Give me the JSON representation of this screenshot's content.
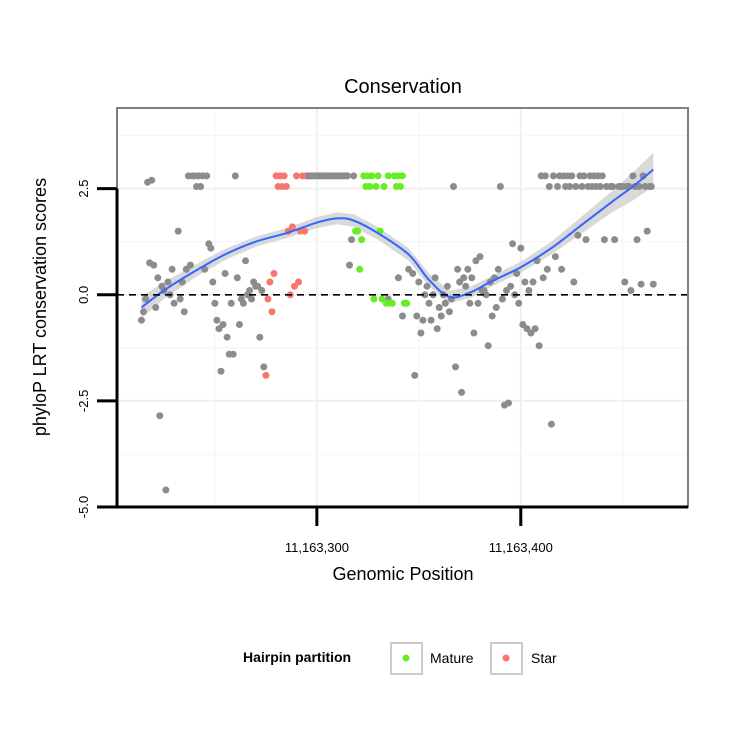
{
  "chart_data": {
    "type": "scatter",
    "title": "Conservation",
    "xlabel": "Genomic Position",
    "ylabel": "phyloP LRT conservation scores",
    "xlim": [
      11163202,
      11163482
    ],
    "ylim": [
      -5.0,
      4.4
    ],
    "x_ticks": [
      {
        "value": 11163300,
        "label": "11,163,300"
      },
      {
        "value": 11163400,
        "label": "11,163,400"
      }
    ],
    "y_ticks": [
      {
        "value": -5.0,
        "label": "-5.0"
      },
      {
        "value": -2.5,
        "label": "-2.5"
      },
      {
        "value": 0.0,
        "label": "0.0"
      },
      {
        "value": 2.5,
        "label": "2.5"
      }
    ],
    "hline": {
      "y": 0.0,
      "style": "dashed",
      "color": "#000000"
    },
    "grid": true,
    "legend": {
      "title": "Hairpin partition",
      "position": "bottom",
      "entries": [
        {
          "label": "Mature",
          "color": "#66ee22"
        },
        {
          "label": "Star",
          "color": "#f8766d"
        }
      ]
    },
    "colors": {
      "other": "#8c8c8c",
      "Mature": "#66ee22",
      "Star": "#f8766d",
      "smooth": "#3366ff",
      "band": "#bfbfbf"
    },
    "series": [
      {
        "name": "Other",
        "points": [
          [
            11163214,
            -0.6
          ],
          [
            11163215,
            -0.4
          ],
          [
            11163216,
            -0.1
          ],
          [
            11163217,
            2.65
          ],
          [
            11163218,
            0.75
          ],
          [
            11163219,
            2.7
          ],
          [
            11163220,
            0.7
          ],
          [
            11163221,
            -0.3
          ],
          [
            11163222,
            0.4
          ],
          [
            11163223,
            -2.85
          ],
          [
            11163224,
            0.2
          ],
          [
            11163225,
            0.1
          ],
          [
            11163226,
            -4.6
          ],
          [
            11163227,
            0.3
          ],
          [
            11163228,
            0.0
          ],
          [
            11163229,
            0.6
          ],
          [
            11163230,
            -0.2
          ],
          [
            11163232,
            1.5
          ],
          [
            11163233,
            -0.1
          ],
          [
            11163234,
            0.3
          ],
          [
            11163235,
            -0.4
          ],
          [
            11163236,
            0.6
          ],
          [
            11163237,
            2.8
          ],
          [
            11163238,
            0.7
          ],
          [
            11163239,
            2.8
          ],
          [
            11163240,
            2.8
          ],
          [
            11163241,
            2.55
          ],
          [
            11163242,
            2.8
          ],
          [
            11163243,
            2.55
          ],
          [
            11163244,
            2.8
          ],
          [
            11163245,
            0.6
          ],
          [
            11163246,
            2.8
          ],
          [
            11163247,
            1.2
          ],
          [
            11163248,
            1.1
          ],
          [
            11163249,
            0.3
          ],
          [
            11163250,
            -0.2
          ],
          [
            11163251,
            -0.6
          ],
          [
            11163252,
            -0.8
          ],
          [
            11163253,
            -1.8
          ],
          [
            11163254,
            -0.7
          ],
          [
            11163255,
            0.5
          ],
          [
            11163256,
            -1.0
          ],
          [
            11163257,
            -1.4
          ],
          [
            11163258,
            -0.2
          ],
          [
            11163259,
            -1.4
          ],
          [
            11163260,
            2.8
          ],
          [
            11163261,
            0.4
          ],
          [
            11163262,
            -0.7
          ],
          [
            11163263,
            -0.1
          ],
          [
            11163264,
            -0.2
          ],
          [
            11163265,
            0.8
          ],
          [
            11163266,
            0.0
          ],
          [
            11163267,
            0.1
          ],
          [
            11163268,
            -0.1
          ],
          [
            11163269,
            0.3
          ],
          [
            11163270,
            0.2
          ],
          [
            11163271,
            0.2
          ],
          [
            11163272,
            -1.0
          ],
          [
            11163273,
            0.1
          ],
          [
            11163274,
            -1.7
          ],
          [
            11163295,
            2.8
          ],
          [
            11163296,
            2.8
          ],
          [
            11163297,
            2.8
          ],
          [
            11163298,
            2.8
          ],
          [
            11163299,
            2.8
          ],
          [
            11163300,
            2.8
          ],
          [
            11163301,
            2.8
          ],
          [
            11163302,
            2.8
          ],
          [
            11163303,
            2.8
          ],
          [
            11163304,
            2.8
          ],
          [
            11163305,
            2.8
          ],
          [
            11163306,
            2.8
          ],
          [
            11163307,
            2.8
          ],
          [
            11163308,
            2.8
          ],
          [
            11163309,
            2.8
          ],
          [
            11163310,
            2.8
          ],
          [
            11163311,
            2.8
          ],
          [
            11163312,
            2.8
          ],
          [
            11163313,
            2.8
          ],
          [
            11163314,
            2.8
          ],
          [
            11163315,
            2.8
          ],
          [
            11163316,
            0.7
          ],
          [
            11163317,
            1.3
          ],
          [
            11163318,
            2.8
          ],
          [
            11163335,
            -0.1
          ],
          [
            11163340,
            0.4
          ],
          [
            11163342,
            -0.5
          ],
          [
            11163343,
            -0.2
          ],
          [
            11163345,
            0.6
          ],
          [
            11163347,
            0.5
          ],
          [
            11163348,
            -1.9
          ],
          [
            11163349,
            -0.5
          ],
          [
            11163350,
            0.3
          ],
          [
            11163351,
            -0.9
          ],
          [
            11163352,
            -0.6
          ],
          [
            11163353,
            0.0
          ],
          [
            11163354,
            0.2
          ],
          [
            11163355,
            -0.2
          ],
          [
            11163356,
            -0.6
          ],
          [
            11163357,
            0.0
          ],
          [
            11163358,
            0.4
          ],
          [
            11163359,
            -0.8
          ],
          [
            11163360,
            -0.3
          ],
          [
            11163361,
            -0.5
          ],
          [
            11163362,
            0.0
          ],
          [
            11163363,
            -0.2
          ],
          [
            11163364,
            0.2
          ],
          [
            11163365,
            -0.4
          ],
          [
            11163366,
            -0.1
          ],
          [
            11163367,
            2.55
          ],
          [
            11163368,
            -1.7
          ],
          [
            11163369,
            0.6
          ],
          [
            11163370,
            0.3
          ],
          [
            11163371,
            -2.3
          ],
          [
            11163372,
            0.4
          ],
          [
            11163373,
            0.2
          ],
          [
            11163374,
            0.6
          ],
          [
            11163375,
            -0.2
          ],
          [
            11163376,
            0.4
          ],
          [
            11163377,
            -0.9
          ],
          [
            11163378,
            0.8
          ],
          [
            11163379,
            -0.2
          ],
          [
            11163380,
            0.9
          ],
          [
            11163381,
            0.1
          ],
          [
            11163382,
            0.1
          ],
          [
            11163383,
            0.0
          ],
          [
            11163384,
            -1.2
          ],
          [
            11163385,
            0.3
          ],
          [
            11163386,
            -0.5
          ],
          [
            11163387,
            0.4
          ],
          [
            11163388,
            -0.3
          ],
          [
            11163389,
            0.6
          ],
          [
            11163390,
            2.55
          ],
          [
            11163391,
            -0.1
          ],
          [
            11163392,
            -2.6
          ],
          [
            11163393,
            0.1
          ],
          [
            11163394,
            -2.55
          ],
          [
            11163395,
            0.2
          ],
          [
            11163396,
            1.2
          ],
          [
            11163397,
            0.0
          ],
          [
            11163398,
            0.5
          ],
          [
            11163399,
            -0.2
          ],
          [
            11163400,
            1.1
          ],
          [
            11163401,
            -0.7
          ],
          [
            11163402,
            0.3
          ],
          [
            11163403,
            -0.8
          ],
          [
            11163404,
            0.1
          ],
          [
            11163405,
            -0.9
          ],
          [
            11163406,
            0.3
          ],
          [
            11163407,
            -0.8
          ],
          [
            11163408,
            0.8
          ],
          [
            11163409,
            -1.2
          ],
          [
            11163410,
            2.8
          ],
          [
            11163411,
            0.4
          ],
          [
            11163412,
            2.8
          ],
          [
            11163413,
            0.6
          ],
          [
            11163414,
            2.55
          ],
          [
            11163415,
            -3.05
          ],
          [
            11163416,
            2.8
          ],
          [
            11163417,
            0.9
          ],
          [
            11163418,
            2.55
          ],
          [
            11163419,
            2.8
          ],
          [
            11163420,
            0.6
          ],
          [
            11163421,
            2.8
          ],
          [
            11163422,
            2.55
          ],
          [
            11163423,
            2.8
          ],
          [
            11163424,
            2.55
          ],
          [
            11163425,
            2.8
          ],
          [
            11163426,
            0.3
          ],
          [
            11163427,
            2.55
          ],
          [
            11163428,
            1.4
          ],
          [
            11163429,
            2.8
          ],
          [
            11163430,
            2.55
          ],
          [
            11163431,
            2.8
          ],
          [
            11163432,
            1.3
          ],
          [
            11163433,
            2.55
          ],
          [
            11163434,
            2.8
          ],
          [
            11163435,
            2.55
          ],
          [
            11163436,
            2.8
          ],
          [
            11163437,
            2.55
          ],
          [
            11163438,
            2.8
          ],
          [
            11163439,
            2.55
          ],
          [
            11163440,
            2.8
          ],
          [
            11163441,
            1.3
          ],
          [
            11163442,
            2.55
          ],
          [
            11163444,
            2.55
          ],
          [
            11163445,
            2.55
          ],
          [
            11163446,
            1.3
          ],
          [
            11163448,
            2.55
          ],
          [
            11163449,
            2.55
          ],
          [
            11163450,
            2.55
          ],
          [
            11163451,
            0.3
          ],
          [
            11163452,
            2.55
          ],
          [
            11163453,
            2.55
          ],
          [
            11163454,
            0.1
          ],
          [
            11163455,
            2.8
          ],
          [
            11163456,
            2.55
          ],
          [
            11163457,
            1.3
          ],
          [
            11163458,
            2.55
          ],
          [
            11163459,
            0.25
          ],
          [
            11163460,
            2.8
          ],
          [
            11163461,
            2.55
          ],
          [
            11163462,
            1.5
          ],
          [
            11163463,
            2.55
          ],
          [
            11163464,
            2.55
          ],
          [
            11163465,
            0.25
          ]
        ]
      },
      {
        "name": "Mature",
        "points": [
          [
            11163319,
            1.5
          ],
          [
            11163320,
            1.5
          ],
          [
            11163321,
            0.6
          ],
          [
            11163322,
            1.3
          ],
          [
            11163323,
            2.8
          ],
          [
            11163324,
            2.55
          ],
          [
            11163325,
            2.8
          ],
          [
            11163326,
            2.55
          ],
          [
            11163327,
            2.8
          ],
          [
            11163328,
            -0.1
          ],
          [
            11163329,
            2.55
          ],
          [
            11163330,
            2.8
          ],
          [
            11163331,
            1.5
          ],
          [
            11163332,
            -0.1
          ],
          [
            11163333,
            2.55
          ],
          [
            11163334,
            -0.2
          ],
          [
            11163335,
            2.8
          ],
          [
            11163336,
            -0.2
          ],
          [
            11163337,
            -0.2
          ],
          [
            11163338,
            2.8
          ],
          [
            11163339,
            2.55
          ],
          [
            11163340,
            2.8
          ],
          [
            11163341,
            2.55
          ],
          [
            11163342,
            2.8
          ],
          [
            11163343,
            -0.2
          ],
          [
            11163344,
            -0.2
          ]
        ]
      },
      {
        "name": "Star",
        "points": [
          [
            11163275,
            -1.9
          ],
          [
            11163276,
            -0.1
          ],
          [
            11163277,
            0.3
          ],
          [
            11163278,
            -0.4
          ],
          [
            11163279,
            0.5
          ],
          [
            11163280,
            2.8
          ],
          [
            11163281,
            2.55
          ],
          [
            11163282,
            2.8
          ],
          [
            11163283,
            2.55
          ],
          [
            11163284,
            2.8
          ],
          [
            11163285,
            2.55
          ],
          [
            11163286,
            1.5
          ],
          [
            11163287,
            0.0
          ],
          [
            11163288,
            1.6
          ],
          [
            11163289,
            0.2
          ],
          [
            11163290,
            2.8
          ],
          [
            11163291,
            0.3
          ],
          [
            11163292,
            1.5
          ],
          [
            11163293,
            2.8
          ],
          [
            11163294,
            1.5
          ]
        ]
      }
    ],
    "smooth": {
      "x": [
        11163214,
        11163225,
        11163240,
        11163255,
        11163270,
        11163285,
        11163300,
        11163310,
        11163318,
        11163330,
        11163345,
        11163355,
        11163365,
        11163375,
        11163385,
        11163400,
        11163415,
        11163430,
        11163445,
        11163455,
        11163465
      ],
      "y": [
        -0.3,
        0.1,
        0.55,
        0.95,
        1.25,
        1.45,
        1.7,
        1.8,
        1.75,
        1.45,
        0.95,
        0.35,
        -0.05,
        0.05,
        0.3,
        0.65,
        1.1,
        1.65,
        2.2,
        2.55,
        2.95
      ],
      "lower": [
        -0.55,
        -0.1,
        0.4,
        0.82,
        1.13,
        1.33,
        1.57,
        1.66,
        1.6,
        1.3,
        0.8,
        0.2,
        -0.2,
        -0.08,
        0.18,
        0.52,
        0.95,
        1.45,
        1.95,
        2.22,
        2.55
      ],
      "upper": [
        -0.05,
        0.3,
        0.7,
        1.08,
        1.37,
        1.57,
        1.83,
        1.94,
        1.9,
        1.6,
        1.1,
        0.5,
        0.1,
        0.18,
        0.42,
        0.78,
        1.25,
        1.85,
        2.45,
        2.88,
        3.35
      ]
    }
  }
}
